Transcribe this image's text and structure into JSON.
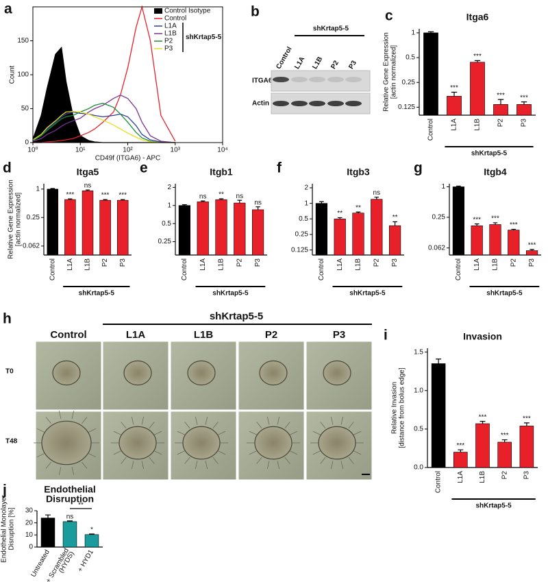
{
  "panel_labels": [
    "a",
    "b",
    "c",
    "d",
    "e",
    "f",
    "g",
    "h",
    "i",
    "j"
  ],
  "chart_data": [
    {
      "type": "line",
      "xlabel": "CD49f (ITGA6) - APC",
      "ylabel": "Count",
      "xlog": true,
      "x": [
        1,
        1.5,
        2,
        3,
        4,
        5,
        7,
        10,
        15,
        20,
        30,
        50,
        70,
        100,
        150,
        200,
        300,
        500,
        1000
      ],
      "xlim": [
        1,
        10000
      ],
      "xticks": [
        {
          "value": 1,
          "label": "10⁰"
        },
        {
          "value": 10,
          "label": "10¹"
        },
        {
          "value": 100,
          "label": "10²"
        },
        {
          "value": 1000,
          "label": "10³"
        },
        {
          "value": 10000,
          "label": "10⁴"
        }
      ],
      "ylim": [
        0,
        200
      ],
      "yticks": [
        0,
        50,
        100,
        150
      ],
      "legend": "upper right",
      "legend_group": "shKrtap5-5",
      "series": [
        {
          "name": "Control Isotype",
          "color": "#000000",
          "filled": true,
          "values": [
            5,
            40,
            80,
            130,
            140,
            90,
            40,
            10,
            3,
            1,
            0,
            0,
            0,
            0,
            0,
            0,
            0,
            0,
            0
          ]
        },
        {
          "name": "Control",
          "color": "#e8202a",
          "values": [
            0,
            0,
            1,
            2,
            3,
            4,
            6,
            10,
            15,
            20,
            30,
            45,
            70,
            110,
            170,
            200,
            150,
            40,
            2
          ]
        },
        {
          "name": "L1A",
          "color": "#2c3e9c",
          "values": [
            3,
            10,
            20,
            30,
            38,
            42,
            45,
            43,
            42,
            40,
            38,
            40,
            42,
            38,
            25,
            12,
            4,
            1,
            0
          ]
        },
        {
          "name": "L1B",
          "color": "#7b3294",
          "values": [
            2,
            6,
            12,
            18,
            24,
            28,
            32,
            36,
            45,
            50,
            55,
            65,
            70,
            65,
            50,
            30,
            10,
            2,
            0
          ]
        },
        {
          "name": "P2",
          "color": "#1b8a3a",
          "values": [
            3,
            10,
            18,
            28,
            35,
            38,
            40,
            45,
            50,
            55,
            58,
            52,
            42,
            30,
            15,
            7,
            2,
            0,
            0
          ]
        },
        {
          "name": "P3",
          "color": "#e6e01c",
          "values": [
            4,
            12,
            22,
            32,
            40,
            45,
            46,
            45,
            42,
            38,
            33,
            26,
            20,
            14,
            8,
            4,
            1,
            0,
            0
          ]
        }
      ]
    },
    {
      "type": "bar",
      "title": "Itga6",
      "ylabel": [
        "Relative Gene Expression",
        "[actin normalized]"
      ],
      "ylog": 2,
      "ylim": [
        0.1,
        1.12
      ],
      "yticks": [
        1,
        0.5,
        0.25,
        0.125
      ],
      "categories": [
        "Control",
        "L1A",
        "L1B",
        "P2",
        "P3"
      ],
      "values": [
        1,
        0.17,
        0.44,
        0.135,
        0.135
      ],
      "errors": [
        0.03,
        0.02,
        0.02,
        0.02,
        0.01
      ],
      "colors": [
        "#000000",
        "#e8202a",
        "#e8202a",
        "#e8202a",
        "#e8202a"
      ],
      "significance": [
        null,
        "***",
        "***",
        "***",
        "***"
      ],
      "group_label": "shKrtap5-5"
    },
    {
      "type": "bar",
      "title": "Itga5",
      "ylabel": [
        "Relative Gene Expression",
        "[actin normalized]"
      ],
      "ylog": 2,
      "ylim": [
        0.04,
        1.3
      ],
      "yticks": [
        1,
        0.25,
        0.062
      ],
      "categories": [
        "Control",
        "L1A",
        "L1B",
        "P2",
        "P3"
      ],
      "values": [
        1,
        0.6,
        0.92,
        0.58,
        0.58
      ],
      "errors": [
        0.03,
        0.02,
        0.04,
        0.02,
        0.02
      ],
      "colors": [
        "#000000",
        "#e8202a",
        "#e8202a",
        "#e8202a",
        "#e8202a"
      ],
      "significance": [
        null,
        "***",
        "ns",
        "***",
        "***"
      ],
      "group_label": "shKrtap5-5"
    },
    {
      "type": "bar",
      "title": "Itgb1",
      "ylog": 2,
      "ylim": [
        0.15,
        2.3
      ],
      "yticks": [
        2,
        1,
        0.5,
        0.25
      ],
      "categories": [
        "Control",
        "L1A",
        "L1B",
        "P2",
        "P3"
      ],
      "values": [
        1,
        1.15,
        1.25,
        1.1,
        0.85
      ],
      "errors": [
        0.03,
        0.04,
        0.04,
        0.12,
        0.1
      ],
      "colors": [
        "#000000",
        "#e8202a",
        "#e8202a",
        "#e8202a",
        "#e8202a"
      ],
      "significance": [
        null,
        "ns",
        "**",
        "ns",
        "ns"
      ],
      "group_label": "shKrtap5-5"
    },
    {
      "type": "bar",
      "title": "Itgb3",
      "ylog": 2,
      "ylim": [
        0.1,
        2.4
      ],
      "yticks": [
        2,
        1,
        0.5,
        0.25,
        0.125
      ],
      "categories": [
        "Control",
        "L1A",
        "L1B",
        "P2",
        "P3"
      ],
      "values": [
        1,
        0.5,
        0.65,
        1.2,
        0.37
      ],
      "errors": [
        0.08,
        0.03,
        0.03,
        0.12,
        0.07
      ],
      "colors": [
        "#000000",
        "#e8202a",
        "#e8202a",
        "#e8202a",
        "#e8202a"
      ],
      "significance": [
        null,
        "**",
        "**",
        "ns",
        "**"
      ],
      "group_label": "shKrtap5-5"
    },
    {
      "type": "bar",
      "title": "Itgb4",
      "ylog": 2,
      "ylim": [
        0.045,
        1.15
      ],
      "yticks": [
        1,
        0.25,
        0.062
      ],
      "categories": [
        "Control",
        "L1A",
        "L1B",
        "P2",
        "P3"
      ],
      "values": [
        1,
        0.17,
        0.18,
        0.14,
        0.055
      ],
      "errors": [
        0.03,
        0.015,
        0.015,
        0.005,
        0.003
      ],
      "colors": [
        "#000000",
        "#e8202a",
        "#e8202a",
        "#e8202a",
        "#e8202a"
      ],
      "significance": [
        null,
        "***",
        "***",
        "***",
        "***"
      ],
      "group_label": "shKrtap5-5"
    },
    {
      "type": "bar",
      "title": "Invasion",
      "ylabel": [
        "Relative Invasion",
        "[distance from bolus edge]"
      ],
      "ylim": [
        0,
        1.55
      ],
      "yticks": [
        {
          "value": 0,
          "label": "0.0"
        },
        0.5,
        {
          "value": 1,
          "label": "1.0"
        },
        1.5
      ],
      "categories": [
        "Control",
        "L1A",
        "L1B",
        "P2",
        "P3"
      ],
      "values": [
        1.35,
        0.2,
        0.57,
        0.33,
        0.54
      ],
      "errors": [
        0.06,
        0.03,
        0.03,
        0.03,
        0.04
      ],
      "colors": [
        "#000000",
        "#e8202a",
        "#e8202a",
        "#e8202a",
        "#e8202a"
      ],
      "significance": [
        null,
        "***",
        "***",
        "***",
        "***"
      ],
      "group_label": "shKrtap5-5"
    },
    {
      "type": "bar",
      "title": [
        "Endothelial",
        "Disruption"
      ],
      "ylabel": [
        "Endothelial Monolayer",
        "Disruption [%]"
      ],
      "ylim": [
        0,
        30
      ],
      "yticks": [
        0,
        10,
        20,
        30
      ],
      "categories": [
        "Untreated",
        [
          "+ Scrambled",
          "(HYDS)"
        ],
        "+ HYD1"
      ],
      "values": [
        24,
        21,
        10.3
      ],
      "errors": [
        2.5,
        0.6,
        0.5
      ],
      "colors": [
        "#000000",
        "#1a9c9c",
        "#1a9c9c"
      ],
      "significance": [
        null,
        "ns",
        "*"
      ],
      "bracket_label": "**"
    }
  ],
  "blot": {
    "group_label": "shKrtap5-5",
    "lanes": [
      "Control",
      "L1A",
      "L1B",
      "P2",
      "P3"
    ],
    "rows": [
      "ITGA6",
      "Actin"
    ]
  },
  "micrographs": {
    "group_label": "shKrtap5-5",
    "columns": [
      "Control",
      "L1A",
      "L1B",
      "P2",
      "P3"
    ],
    "rows": [
      "T0",
      "T48"
    ]
  }
}
